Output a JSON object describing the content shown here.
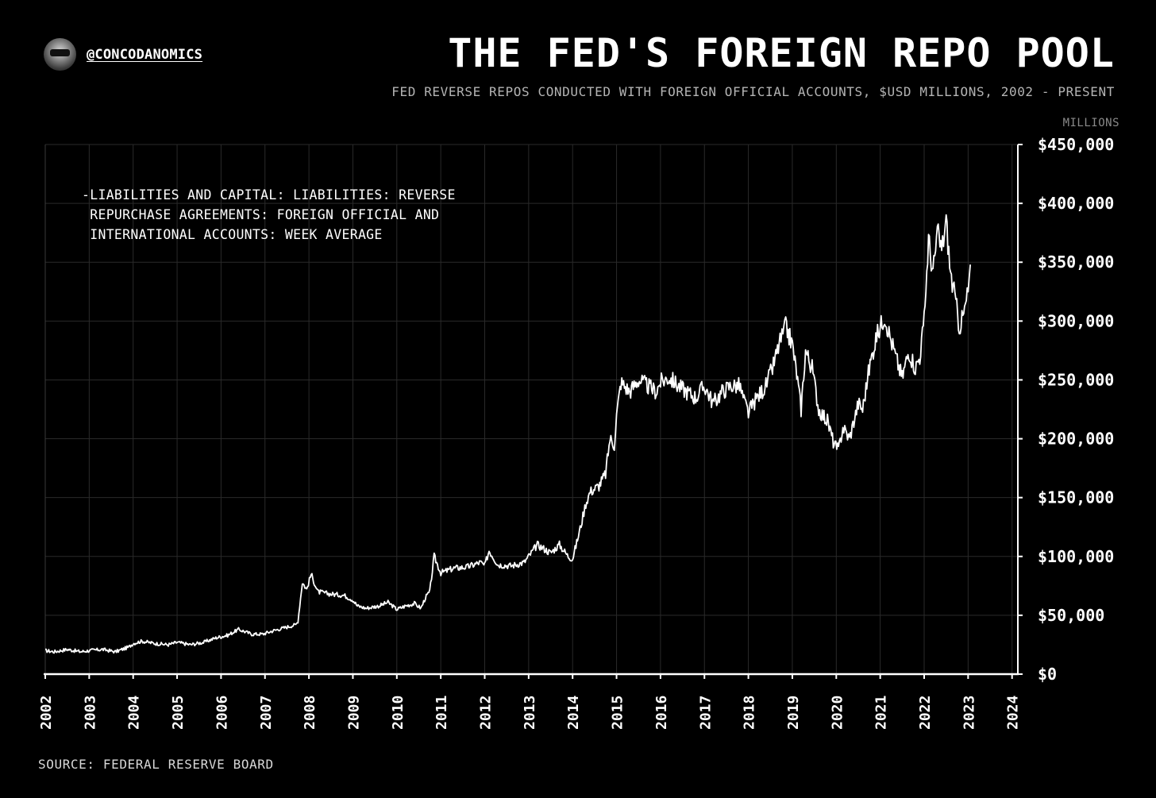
{
  "header": {
    "handle": "@CONCODANOMICS",
    "title": "THE FED'S FOREIGN REPO POOL",
    "subtitle": "FED REVERSE REPOS CONDUCTED WITH FOREIGN OFFICIAL ACCOUNTS, $USD MILLIONS, 2002 - PRESENT",
    "units": "MILLIONS"
  },
  "footer": {
    "source": "SOURCE: FEDERAL RESERVE BOARD"
  },
  "colors": {
    "background": "#000000",
    "line": "#ffffff",
    "grid": "#2a2a2a",
    "axis": "#ffffff"
  },
  "chart_data": {
    "type": "line",
    "title": "THE FED'S FOREIGN REPO POOL",
    "ylabel": "MILLIONS",
    "xlim": [
      2002,
      2024.5
    ],
    "ylim": [
      0,
      450000
    ],
    "grid": true,
    "y_axis_side": "right",
    "x_ticks": [
      "2002",
      "2003",
      "2004",
      "2005",
      "2006",
      "2007",
      "2008",
      "2009",
      "2010",
      "2011",
      "2012",
      "2013",
      "2014",
      "2015",
      "2016",
      "2017",
      "2018",
      "2019",
      "2020",
      "2021",
      "2022",
      "2023",
      "2024"
    ],
    "y_ticks": [
      {
        "value": 0,
        "label": "$0"
      },
      {
        "value": 50000,
        "label": "$50,000"
      },
      {
        "value": 100000,
        "label": "$100,000"
      },
      {
        "value": 150000,
        "label": "$150,000"
      },
      {
        "value": 200000,
        "label": "$200,000"
      },
      {
        "value": 250000,
        "label": "$250,000"
      },
      {
        "value": 300000,
        "label": "$300,000"
      },
      {
        "value": 350000,
        "label": "$350,000"
      },
      {
        "value": 400000,
        "label": "$400,000"
      },
      {
        "value": 450000,
        "label": "$450,000"
      }
    ],
    "legend_lines": [
      "-LIABILITIES AND CAPITAL: LIABILITIES: REVERSE",
      " REPURCHASE AGREEMENTS: FOREIGN OFFICIAL AND",
      " INTERNATIONAL ACCOUNTS: WEEK AVERAGE"
    ],
    "legend_position": "top-left",
    "series": [
      {
        "name": "LIABILITIES AND CAPITAL: LIABILITIES: REVERSE REPURCHASE AGREEMENTS: FOREIGN OFFICIAL AND INTERNATIONAL ACCOUNTS: WEEK AVERAGE",
        "x": [
          2002.0,
          2002.2,
          2002.5,
          2002.8,
          2003.0,
          2003.3,
          2003.6,
          2003.9,
          2004.0,
          2004.2,
          2004.5,
          2004.8,
          2005.0,
          2005.3,
          2005.6,
          2005.9,
          2006.15,
          2006.4,
          2006.7,
          2006.95,
          2007.2,
          2007.5,
          2007.7,
          2007.75,
          2007.85,
          2007.95,
          2008.05,
          2008.2,
          2008.5,
          2008.8,
          2009.0,
          2009.1,
          2009.3,
          2009.6,
          2009.8,
          2010.0,
          2010.2,
          2010.4,
          2010.55,
          2010.65,
          2010.75,
          2010.85,
          2011.0,
          2011.3,
          2011.6,
          2011.9,
          2012.0,
          2012.1,
          2012.3,
          2012.6,
          2012.9,
          2013.0,
          2013.2,
          2013.5,
          2013.7,
          2013.9,
          2014.0,
          2014.15,
          2014.3,
          2014.4,
          2014.6,
          2014.75,
          2014.85,
          2014.95,
          2015.0,
          2015.1,
          2015.3,
          2015.5,
          2015.7,
          2015.9,
          2016.0,
          2016.2,
          2016.4,
          2016.6,
          2016.8,
          2017.0,
          2017.2,
          2017.4,
          2017.6,
          2017.8,
          2017.9,
          2018.0,
          2018.2,
          2018.4,
          2018.55,
          2018.7,
          2018.85,
          2019.0,
          2019.1,
          2019.2,
          2019.3,
          2019.45,
          2019.6,
          2019.8,
          2019.95,
          2020.05,
          2020.15,
          2020.3,
          2020.5,
          2020.6,
          2020.75,
          2020.9,
          2021.0,
          2021.1,
          2021.2,
          2021.35,
          2021.5,
          2021.65,
          2021.8,
          2021.9,
          2022.0,
          2022.1,
          2022.2,
          2022.3,
          2022.4,
          2022.5,
          2022.6,
          2022.7,
          2022.8,
          2022.9,
          2023.0,
          2023.05
        ],
        "y": [
          20000,
          19000,
          21000,
          19000,
          20000,
          21000,
          19000,
          23000,
          26000,
          28000,
          26000,
          25000,
          27000,
          25000,
          27000,
          31000,
          33000,
          38000,
          34000,
          34000,
          37000,
          40000,
          42000,
          45000,
          78000,
          72000,
          85000,
          70000,
          68000,
          67000,
          63000,
          58000,
          56000,
          58000,
          61000,
          55000,
          58000,
          60000,
          56000,
          65000,
          70000,
          100000,
          86000,
          90000,
          91000,
          95000,
          92000,
          105000,
          93000,
          92000,
          95000,
          100000,
          110000,
          103000,
          110000,
          100000,
          98000,
          120000,
          145000,
          155000,
          160000,
          170000,
          200000,
          195000,
          220000,
          248000,
          240000,
          250000,
          245000,
          240000,
          248000,
          252000,
          245000,
          240000,
          235000,
          245000,
          230000,
          240000,
          245000,
          245000,
          232000,
          222000,
          235000,
          245000,
          260000,
          280000,
          295000,
          280000,
          255000,
          225000,
          275000,
          260000,
          225000,
          215000,
          195000,
          190000,
          210000,
          200000,
          230000,
          225000,
          260000,
          285000,
          295000,
          305000,
          290000,
          270000,
          252000,
          275000,
          260000,
          270000,
          300000,
          370000,
          340000,
          375000,
          360000,
          385000,
          340000,
          320000,
          295000,
          305000,
          325000,
          348000
        ]
      }
    ]
  }
}
